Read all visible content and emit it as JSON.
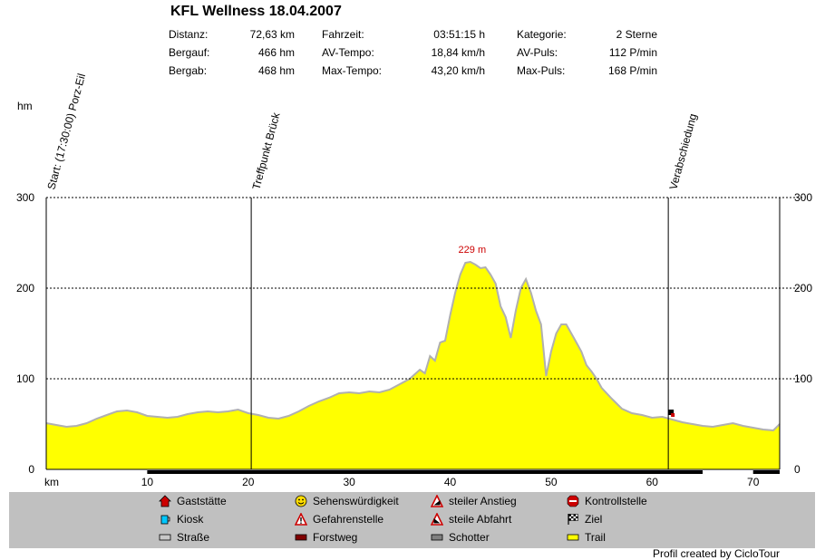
{
  "header": {
    "title": "KFL Wellness 18.04.2007",
    "stats": [
      {
        "label": "Distanz:",
        "value": "72,63 km"
      },
      {
        "label": "Bergauf:",
        "value": "466 hm"
      },
      {
        "label": "Bergab:",
        "value": "468 hm"
      },
      {
        "label": "Fahrzeit:",
        "value": "03:51:15 h"
      },
      {
        "label": "AV-Tempo:",
        "value": "18,84 km/h"
      },
      {
        "label": "Max-Tempo:",
        "value": "43,20 km/h"
      },
      {
        "label": "Kategorie:",
        "value": "2 Sterne"
      },
      {
        "label": "AV-Puls:",
        "value": "112 P/min"
      },
      {
        "label": "Max-Puls:",
        "value": "168 P/min"
      }
    ]
  },
  "chart_data": {
    "type": "area",
    "y_unit_label": "hm",
    "x_unit_label": "km",
    "xlim": [
      0,
      72.63
    ],
    "ylim": [
      0,
      300
    ],
    "x_ticks": [
      10,
      20,
      30,
      40,
      50,
      60,
      70
    ],
    "y_ticks": [
      0,
      100,
      200,
      300
    ],
    "grid": "dotted horizontal at 100, 200, 300",
    "series": [
      {
        "fill": "#ffff00",
        "stroke": "#b0b0b0",
        "x": [
          0,
          1,
          2,
          3,
          4,
          5,
          6,
          7,
          8,
          9,
          10,
          11,
          12,
          13,
          14,
          15,
          16,
          17,
          18,
          19,
          20,
          21,
          22,
          23,
          24,
          25,
          26,
          27,
          28,
          29,
          30,
          31,
          32,
          33,
          34,
          35,
          36,
          37,
          37.5,
          38,
          38.5,
          39,
          39.5,
          40,
          40.5,
          41,
          41.5,
          42,
          42.5,
          43,
          43.5,
          44,
          44.5,
          45,
          45.5,
          46,
          46.5,
          47,
          47.5,
          48,
          48.5,
          49,
          49.5,
          50,
          50.5,
          51,
          51.5,
          52,
          52.5,
          53,
          53.5,
          54,
          54.5,
          55,
          56,
          57,
          58,
          59,
          60,
          61,
          62,
          63,
          64,
          65,
          66,
          67,
          68,
          69,
          70,
          71,
          72,
          72.63
        ],
        "y": [
          51,
          49,
          47,
          48,
          51,
          56,
          60,
          64,
          65,
          63,
          59,
          58,
          57,
          58,
          61,
          63,
          64,
          63,
          64,
          66,
          62,
          60,
          57,
          56,
          59,
          64,
          70,
          75,
          79,
          84,
          85,
          84,
          86,
          85,
          88,
          94,
          100,
          110,
          106,
          125,
          120,
          140,
          142,
          170,
          195,
          215,
          228,
          229,
          226,
          222,
          223,
          215,
          205,
          180,
          168,
          145,
          175,
          200,
          210,
          195,
          175,
          160,
          103,
          130,
          150,
          160,
          160,
          150,
          140,
          130,
          115,
          108,
          100,
          90,
          78,
          67,
          62,
          60,
          57,
          58,
          55,
          52,
          50,
          48,
          47,
          49,
          51,
          48,
          46,
          44,
          43,
          50
        ]
      }
    ],
    "peak_label": "229 m",
    "waypoints": [
      {
        "km": 0,
        "label": "Start: (17:30:00) Porz-Eil"
      },
      {
        "km": 20.3,
        "label": "Treffpunkt Brück"
      },
      {
        "km": 61.6,
        "label": "Verabschiedung"
      }
    ],
    "surface_bar": [
      {
        "from": 10,
        "to": 65,
        "color": "#000000"
      },
      {
        "from": 70,
        "to": 72.63,
        "color": "#000000"
      }
    ]
  },
  "legend": {
    "items": [
      {
        "label": "Gaststätte",
        "icon": "house-icon"
      },
      {
        "label": "Kiosk",
        "icon": "cup-icon"
      },
      {
        "label": "Straße",
        "icon": "road-swatch"
      },
      {
        "label": "Sehenswürdigkeit",
        "icon": "smiley-icon"
      },
      {
        "label": "Gefahrenstelle",
        "icon": "warning-icon"
      },
      {
        "label": "Forstweg",
        "icon": "forest-swatch"
      },
      {
        "label": "steiler Anstieg",
        "icon": "climb-icon"
      },
      {
        "label": "steile Abfahrt",
        "icon": "descent-icon"
      },
      {
        "label": "Schotter",
        "icon": "gravel-swatch"
      },
      {
        "label": "Kontrollstelle",
        "icon": "stop-icon"
      },
      {
        "label": "Ziel",
        "icon": "checkered-flag-icon"
      },
      {
        "label": "Trail",
        "icon": "trail-swatch"
      }
    ]
  },
  "credit": "Profil created by CicloTour"
}
